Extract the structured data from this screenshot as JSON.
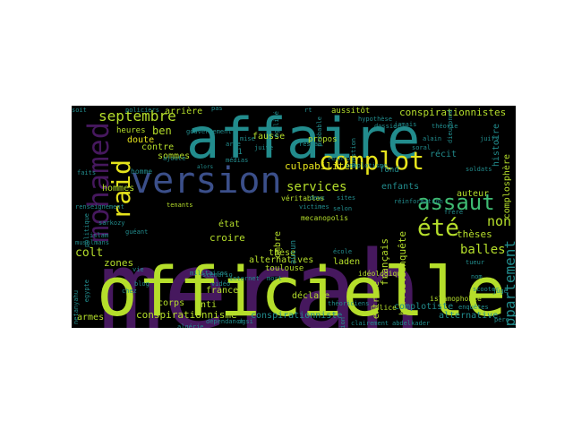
{
  "palette": {
    "background": "#000000",
    "purple": "#46185e",
    "teal": "#228c8d",
    "lime": "#b5de2b",
    "green": "#3fbc73",
    "blue": "#355f8d",
    "navy": "#3b4f8a",
    "yellow": "#e6e41c"
  },
  "words": {
    "merah": "merah",
    "affaire": "affaire",
    "officielle": "officielle",
    "version": "version",
    "complot": "complot",
    "mohamed": "mohamed",
    "assaut": "assaut",
    "raid": "raid",
    "ete": "été",
    "septembre": "septembre",
    "services": "services",
    "balles": "balles",
    "non": "non",
    "appartement": "appartement",
    "conspirationnistes": "conspirationnistes",
    "conspirationnisme": "conspirationnisme",
    "conspirationniste": "conspirationniste",
    "culpabilite": "culpabilité",
    "recit": "récit",
    "histoire": "histoire",
    "complosphere": "complosphère",
    "colt": "colt",
    "zones": "zones",
    "ben": "ben",
    "laden": "laden",
    "theses": "thèses",
    "these": "thèse",
    "alternatives": "alternatives",
    "alternative": "alternative",
    "croire": "croire",
    "francais": "français",
    "enquete": "enquête",
    "enfants": "enfants",
    "fond": "fond",
    "auteur": "auteur",
    "hommes": "hommes",
    "doute": "doute",
    "sommes": "sommes",
    "heures": "heures",
    "arriere": "arrière",
    "aussitot": "aussitôt",
    "fausse": "fausse",
    "toulouse": "toulouse",
    "corps": "corps",
    "france": "france",
    "declare": "déclare",
    "armes": "armes",
    "anti": "anti",
    "etat": "état",
    "ombre": "ombre",
    "extreme": "extrême",
    "horrible": "horrible",
    "complotiste": "complotiste",
    "contre": "contre",
    "propos": "propos",
    "veritables": "véritables",
    "mecanopolis": "mecanopolis",
    "ideologique": "idéologique",
    "islamophobie": "islamophobie",
    "police": "police",
    "policiers": "policiers",
    "arme": "arme",
    "soit": "soit",
    "homme": "homme",
    "pas": "pas",
    "tenants": "tenants",
    "onze": "11",
    "aucun": "aucun",
    "reinfo": "reinfo",
    "jamais": "jamais",
    "faits": "faits",
    "algerie": "algérie",
    "clairement": "clairement",
    "ajoute": "ajoute",
    "alors": "alors",
    "selon": "selon",
    "deux": "deux",
    "sites": "sites",
    "mort": "mort",
    "video": "vidéo",
    "mise": "mise",
    "vie": "vie",
    "blog": "blog",
    "scenario": "scénario",
    "chez": "chez",
    "egypte": "egypte",
    "netanyahu": "netanyahu",
    "nom": "nom",
    "soldats": "soldats",
    "juifs": "juifs",
    "dieudonne": "dieudonné",
    "theorie": "théorie",
    "hypothese": "hypothèse",
    "reseau": "réseau",
    "question": "question",
    "probable": "probable",
    "rt": "rt",
    "politique": "politique",
    "renseignement": "renseignement",
    "islam": "islam",
    "musulmans": "musulmans",
    "tueur": "tueur",
    "scooter": "scooter",
    "enquetes": "enquêtes",
    "juge": "juge",
    "pere": "père",
    "dgsi": "dgsi",
    "internet": "internet",
    "dependance": "dépendance",
    "reinformation": "réinformation",
    "alain": "alain",
    "soral": "soral",
    "egalite": "égalité",
    "dossier": "dossier",
    "complotisme": "complotisme",
    "victimes": "victimes",
    "ecole": "école",
    "juive": "juive",
    "militaires": "militaires",
    "frere": "frère",
    "abdelkader": "abdelkader",
    "medias": "médias",
    "gouvernement": "gouvernement",
    "sarkozy": "sarkozy",
    "gueant": "guéant",
    "theoriciens": "théoriciens",
    "manipulation": "manipulation"
  }
}
